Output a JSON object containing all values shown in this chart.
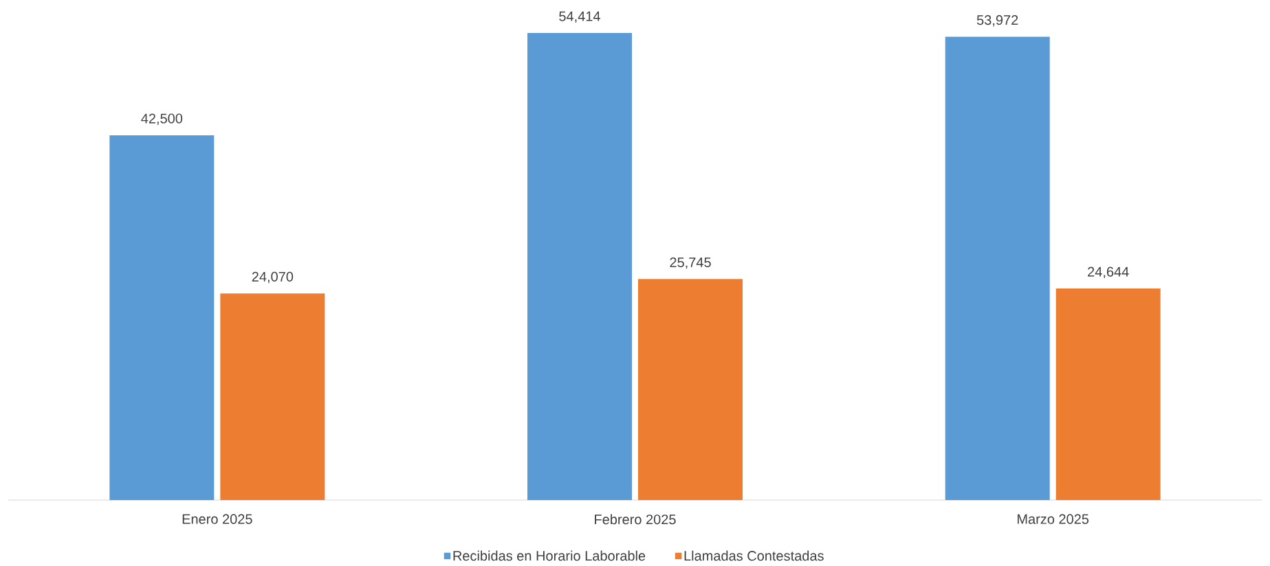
{
  "chart_data": {
    "type": "bar",
    "categories": [
      "Enero 2025",
      "Febrero 2025",
      "Marzo 2025"
    ],
    "series": [
      {
        "name": "Recibidas en Horario Laborable",
        "color": "#5b9bd5",
        "values": [
          42500,
          54414,
          53972
        ],
        "value_labels": [
          "42,500",
          "54,414",
          "53,972"
        ]
      },
      {
        "name": "Llamadas Contestadas",
        "color": "#ed7d31",
        "values": [
          24070,
          25745,
          24644
        ],
        "value_labels": [
          "24,070",
          "25,745",
          "24,644"
        ]
      }
    ],
    "legend": "bottom",
    "grid": false
  }
}
